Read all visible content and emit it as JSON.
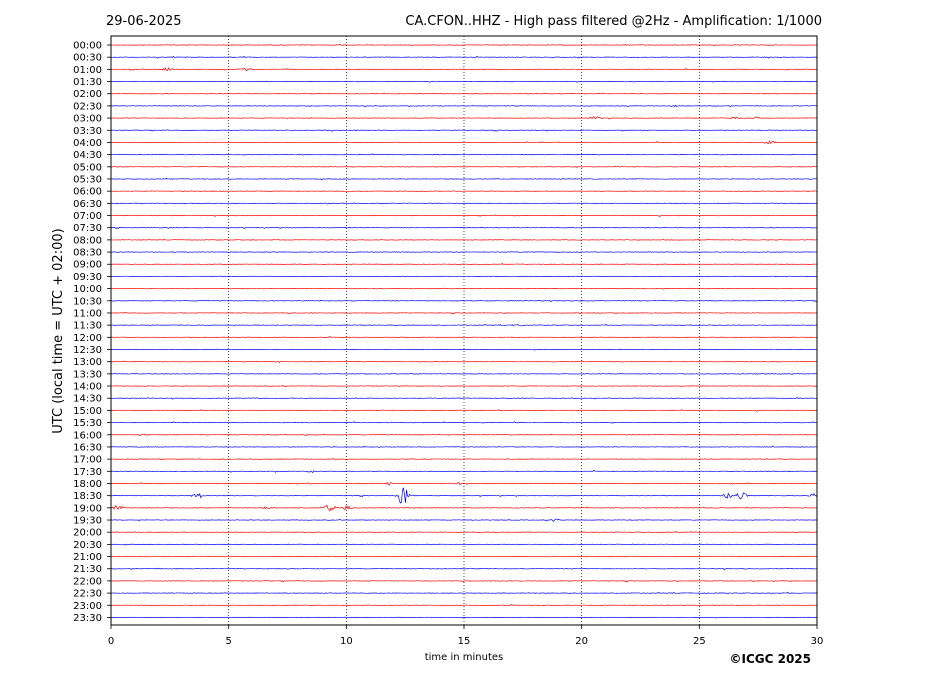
{
  "date": "29-06-2025",
  "title": "CA.CFON..HHZ - High pass filtered @2Hz - Amplification: 1/1000",
  "copyright": "©ICGC 2025",
  "chart_data": {
    "type": "line",
    "title": "CA.CFON..HHZ - High pass filtered @2Hz - Amplification: 1/1000",
    "xlabel": "time in minutes",
    "ylabel": "UTC (local time = UTC + 02:00)",
    "xlim": [
      0,
      30
    ],
    "xticks": [
      0,
      5,
      10,
      15,
      20,
      25,
      30
    ],
    "x_gridlines": [
      5,
      10,
      15,
      20,
      25
    ],
    "rows": [
      "00:00",
      "00:30",
      "01:00",
      "01:30",
      "02:00",
      "02:30",
      "03:00",
      "03:30",
      "04:00",
      "04:30",
      "05:00",
      "05:30",
      "06:00",
      "06:30",
      "07:00",
      "07:30",
      "08:00",
      "08:30",
      "09:00",
      "09:30",
      "10:00",
      "10:30",
      "11:00",
      "11:30",
      "12:00",
      "12:30",
      "13:00",
      "13:30",
      "14:00",
      "14:30",
      "15:00",
      "15:30",
      "16:00",
      "16:30",
      "17:00",
      "17:30",
      "18:00",
      "18:30",
      "19:00",
      "19:30",
      "20:00",
      "20:30",
      "21:00",
      "21:30",
      "22:00",
      "22:30",
      "23:00",
      "23:30"
    ],
    "trace_colors": [
      "#ff0000",
      "#0000ff"
    ],
    "color_pattern": "alternates by hour block: red for rows starting at hh:00 and blue for hh:30 from 00:00-01:00, then pattern repeats per row colors listed",
    "row_colors": [
      "red",
      "blue",
      "red",
      "blue",
      "red",
      "blue",
      "red",
      "blue",
      "red",
      "blue",
      "red",
      "blue",
      "red",
      "blue",
      "red",
      "blue",
      "red",
      "blue",
      "red",
      "blue",
      "red",
      "blue",
      "red",
      "blue",
      "red",
      "blue",
      "red",
      "blue",
      "red",
      "blue",
      "red",
      "blue",
      "red",
      "blue",
      "red",
      "blue",
      "red",
      "blue",
      "red",
      "blue",
      "red",
      "blue",
      "red",
      "blue",
      "red",
      "blue",
      "red",
      "blue"
    ],
    "events": [
      {
        "row": "01:00",
        "minute": 2.4,
        "amplitude": 0.35
      },
      {
        "row": "01:00",
        "minute": 5.7,
        "amplitude": 0.25
      },
      {
        "row": "01:00",
        "minute": 7.5,
        "amplitude": 0.15
      },
      {
        "row": "03:00",
        "minute": 20.6,
        "amplitude": 0.3
      },
      {
        "row": "03:00",
        "minute": 26.5,
        "amplitude": 0.25
      },
      {
        "row": "03:00",
        "minute": 27.5,
        "amplitude": 0.25
      },
      {
        "row": "04:00",
        "minute": 28.0,
        "amplitude": 0.3
      },
      {
        "row": "02:30",
        "minute": 24.0,
        "amplitude": 0.2
      },
      {
        "row": "16:00",
        "minute": 1.4,
        "amplitude": 0.2
      },
      {
        "row": "18:00",
        "minute": 11.8,
        "amplitude": 0.3
      },
      {
        "row": "18:00",
        "minute": 14.7,
        "amplitude": 0.3
      },
      {
        "row": "18:30",
        "minute": 12.4,
        "amplitude": 1.8
      },
      {
        "row": "18:30",
        "minute": 26.2,
        "amplitude": 0.6
      },
      {
        "row": "18:30",
        "minute": 26.8,
        "amplitude": 0.7
      },
      {
        "row": "18:30",
        "minute": 3.7,
        "amplitude": 0.4
      },
      {
        "row": "18:30",
        "minute": 29.9,
        "amplitude": 0.4
      },
      {
        "row": "19:00",
        "minute": 0.3,
        "amplitude": 0.5
      },
      {
        "row": "19:00",
        "minute": 9.3,
        "amplitude": 0.7
      },
      {
        "row": "19:00",
        "minute": 6.7,
        "amplitude": 0.35
      },
      {
        "row": "19:00",
        "minute": 10.0,
        "amplitude": 0.35
      },
      {
        "row": "19:30",
        "minute": 18.9,
        "amplitude": 0.25
      },
      {
        "row": "11:30",
        "minute": 17.3,
        "amplitude": 0.2
      },
      {
        "row": "17:30",
        "minute": 8.5,
        "amplitude": 0.2
      },
      {
        "row": "14:30",
        "minute": 6.3,
        "amplitude": 0.2
      }
    ]
  }
}
